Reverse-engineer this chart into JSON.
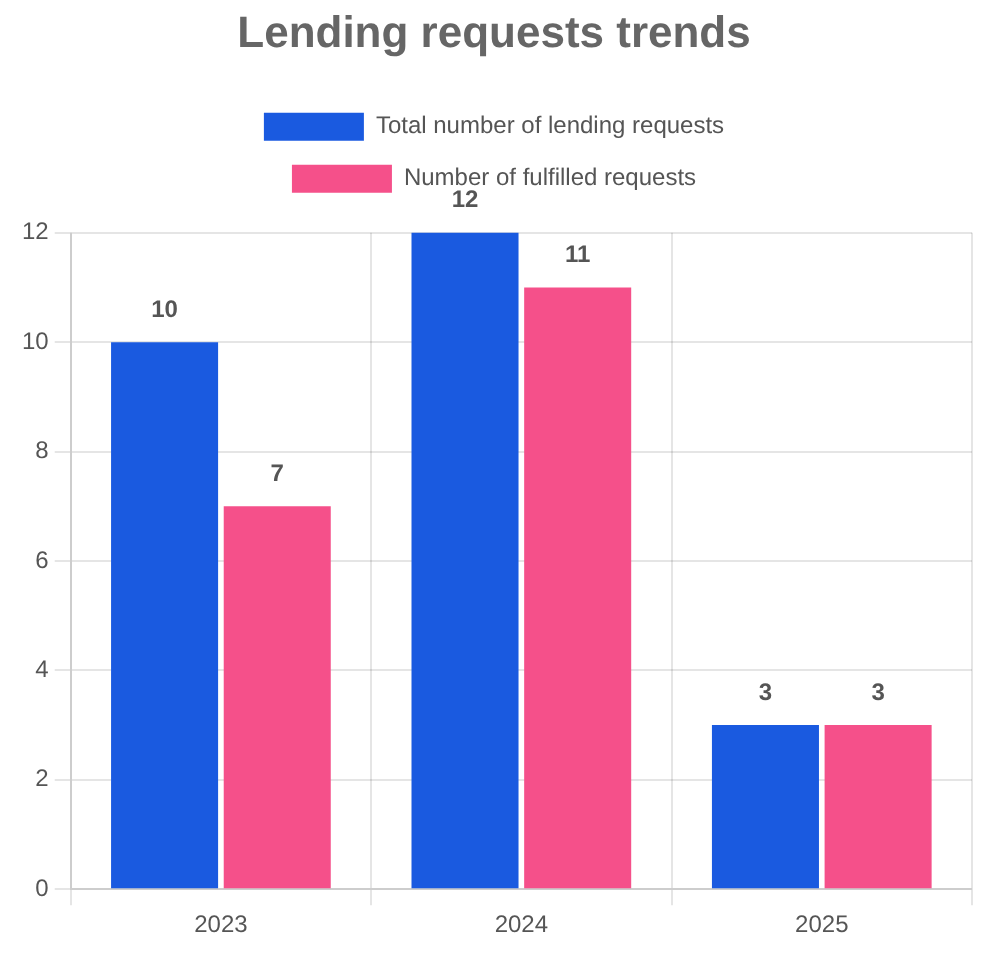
{
  "chart_data": {
    "type": "bar",
    "title": "Lending requests trends",
    "categories": [
      "2023",
      "2024",
      "2025"
    ],
    "series": [
      {
        "name": "Total number of lending requests",
        "color": "#1a5ae0",
        "values": [
          10,
          12,
          3
        ]
      },
      {
        "name": "Number of fulfilled requests",
        "color": "#f5508a",
        "values": [
          7,
          11,
          3
        ]
      }
    ],
    "ylim": [
      0,
      12
    ],
    "yticks": [
      0,
      2,
      4,
      6,
      8,
      10,
      12
    ],
    "grid": true,
    "legend": "top",
    "data_labels": true
  }
}
